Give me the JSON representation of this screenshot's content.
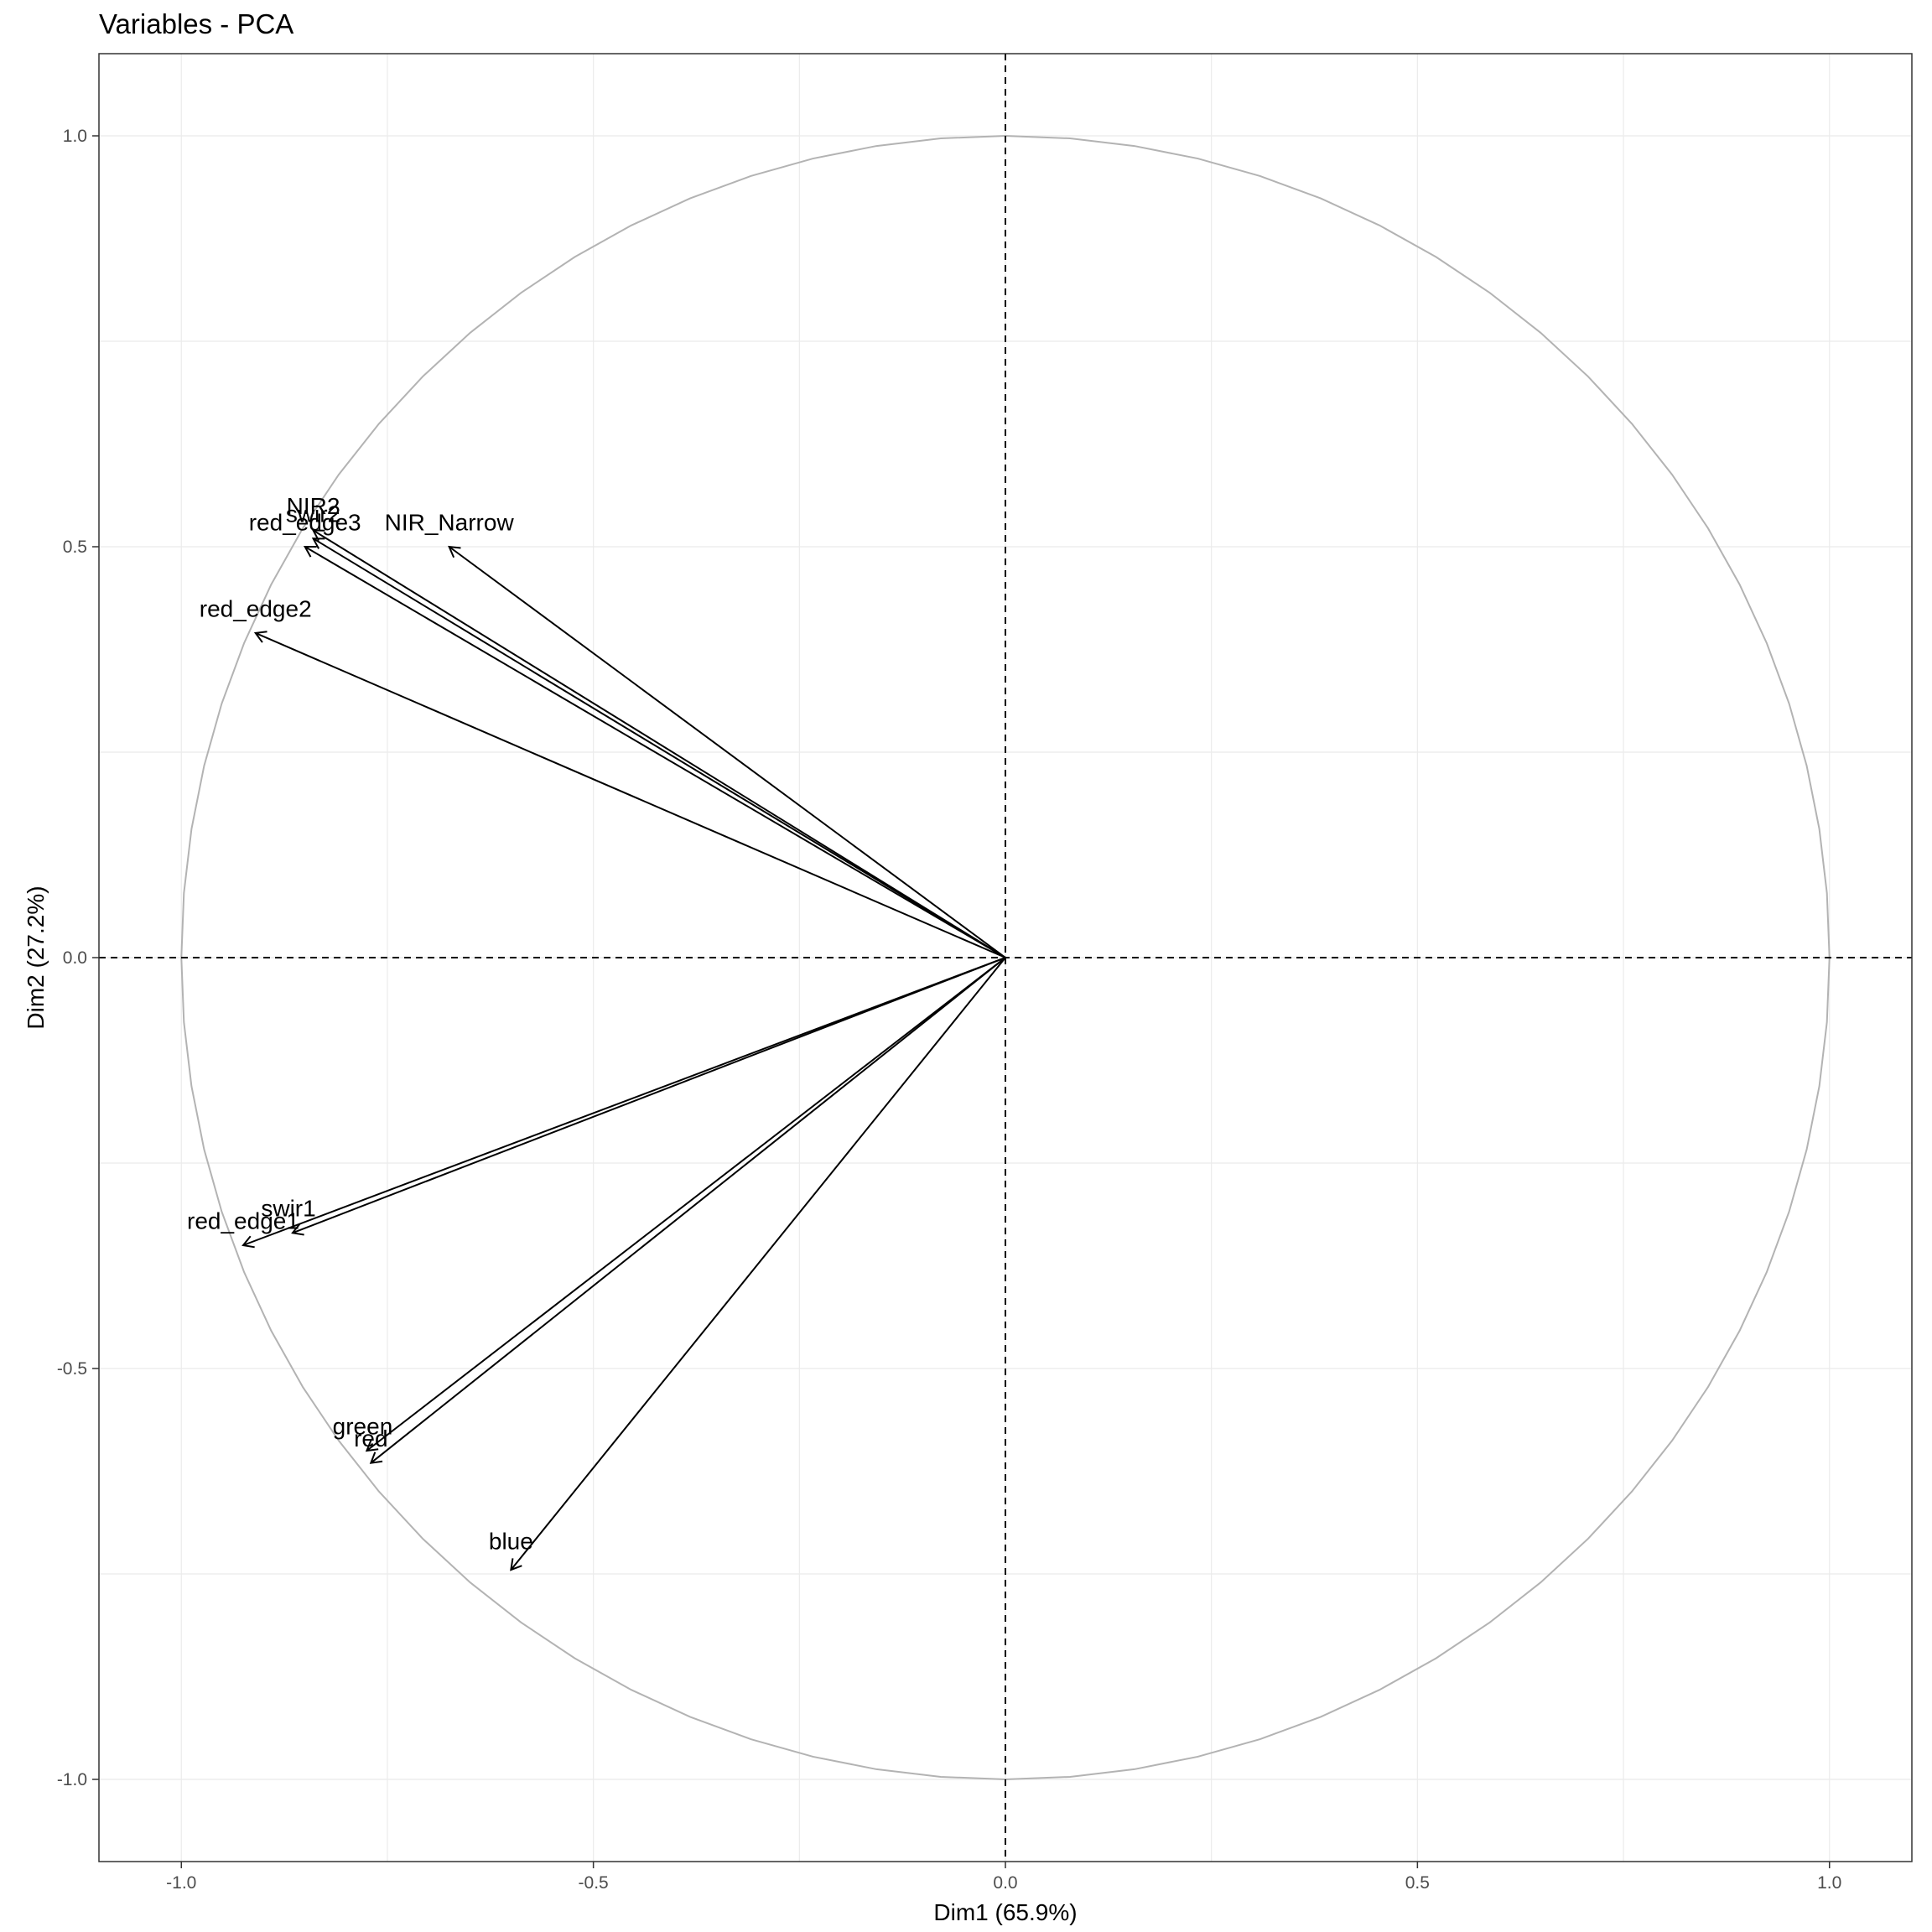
{
  "chart_data": {
    "type": "scatter",
    "subtype": "pca-correlation-circle",
    "title": "Variables - PCA",
    "xlabel": "Dim1 (65.9%)",
    "ylabel": "Dim2 (27.2%)",
    "xlim": [
      -1.1,
      1.1
    ],
    "ylim": [
      -1.1,
      1.1
    ],
    "x_ticks": [
      -1.0,
      -0.5,
      0.0,
      0.5,
      1.0
    ],
    "y_ticks": [
      -1.0,
      -0.5,
      0.0,
      0.5,
      1.0
    ],
    "x_tick_labels": [
      "-1.0",
      "-0.5",
      "0.0",
      "0.5",
      "1.0"
    ],
    "y_tick_labels": [
      "-1.0",
      "-0.5",
      "0.0",
      "0.5",
      "1.0"
    ],
    "grid": true,
    "unit_circle": true,
    "variables": [
      {
        "label": "NIR2",
        "x": -0.84,
        "y": 0.52,
        "label_x": -0.84,
        "label_y": 0.54
      },
      {
        "label": "swir2",
        "x": -0.84,
        "y": 0.51,
        "label_x": -0.84,
        "label_y": 0.53
      },
      {
        "label": "red_edge3",
        "x": -0.85,
        "y": 0.5,
        "label_x": -0.85,
        "label_y": 0.52
      },
      {
        "label": "NIR_Narrow",
        "x": -0.675,
        "y": 0.5,
        "label_x": -0.675,
        "label_y": 0.52
      },
      {
        "label": "red_edge2",
        "x": -0.91,
        "y": 0.395,
        "label_x": -0.91,
        "label_y": 0.415
      },
      {
        "label": "swir1",
        "x": -0.865,
        "y": -0.335,
        "label_x": -0.87,
        "label_y": -0.315
      },
      {
        "label": "red_edge1",
        "x": -0.925,
        "y": -0.35,
        "label_x": -0.925,
        "label_y": -0.33
      },
      {
        "label": "green",
        "x": -0.775,
        "y": -0.6,
        "label_x": -0.78,
        "label_y": -0.58
      },
      {
        "label": "red",
        "x": -0.77,
        "y": -0.615,
        "label_x": -0.77,
        "label_y": -0.595
      },
      {
        "label": "blue",
        "x": -0.6,
        "y": -0.745,
        "label_x": -0.6,
        "label_y": -0.72
      }
    ]
  },
  "colors": {
    "arrow": "#000000",
    "circle": "#b3b3b3",
    "grid": "#ebebeb",
    "panel_border": "#333333",
    "reference_line": "#000000"
  }
}
